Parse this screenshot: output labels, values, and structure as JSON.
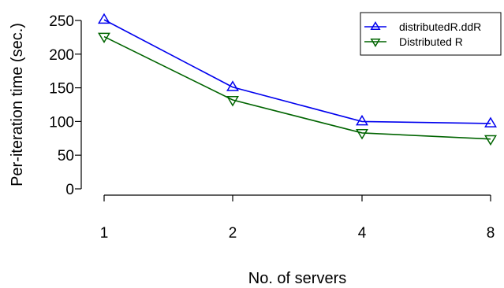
{
  "chart_data": {
    "type": "line",
    "categories": [
      "1",
      "2",
      "4",
      "8"
    ],
    "xlabel": "No. of servers",
    "ylabel": "Per-iteration time (sec.)",
    "yticks": [
      "0",
      "50",
      "100",
      "150",
      "200",
      "250"
    ],
    "ylim": [
      0,
      250
    ],
    "grid": false,
    "legend_position": "top-right",
    "series": [
      {
        "name": "distributedR.ddR",
        "color": "#0000ee",
        "marker": "triangle-up",
        "values": [
          251,
          151,
          100,
          97
        ]
      },
      {
        "name": "Distributed R",
        "color": "#006400",
        "marker": "triangle-down",
        "values": [
          226,
          132,
          83,
          74
        ]
      }
    ]
  }
}
